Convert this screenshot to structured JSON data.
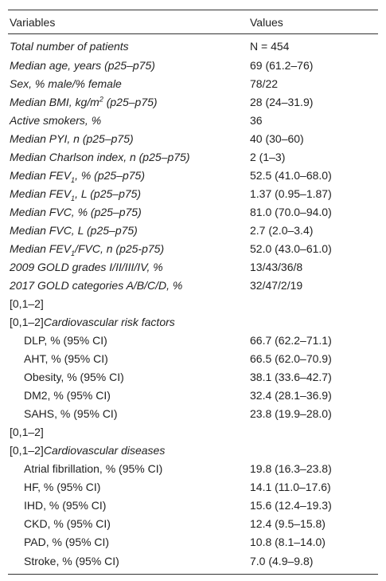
{
  "table": {
    "header": [
      "Variables",
      "Values"
    ],
    "rows": [
      {
        "label": [
          "Total number of patients"
        ],
        "value": "N = 454",
        "italic": true
      },
      {
        "label": [
          "Median age, years (p25–p75)"
        ],
        "value": "69 (61.2–76)",
        "italic": true
      },
      {
        "label": [
          "Sex, % male/% female"
        ],
        "value": "78/22",
        "italic": true
      },
      {
        "label": [
          "Median BMI, kg/m",
          {
            "sup": "2"
          },
          " (p25–p75)"
        ],
        "value": "28 (24–31.9)",
        "italic": true
      },
      {
        "label": [
          "Active smokers, %"
        ],
        "value": "36",
        "italic": true
      },
      {
        "label": [
          "Median PYI, n (p25–p75)"
        ],
        "value": "40 (30–60)",
        "italic": true
      },
      {
        "label": [
          "Median Charlson index, n (p25–p75)"
        ],
        "value": "2 (1–3)",
        "italic": true
      },
      {
        "label": [
          "Median FEV",
          {
            "sub": "1"
          },
          ", % (p25–p75)"
        ],
        "value": "52.5 (41.0–68.0)",
        "italic": true
      },
      {
        "label": [
          "Median FEV",
          {
            "sub": "1"
          },
          ", L (p25–p75)"
        ],
        "value": "1.37 (0.95–1.87)",
        "italic": true
      },
      {
        "label": [
          "Median FVC, % (p25–p75)"
        ],
        "value": "81.0 (70.0–94.0)",
        "italic": true
      },
      {
        "label": [
          "Median FVC, L (p25–p75)"
        ],
        "value": "2.7 (2.0–3.4)",
        "italic": true
      },
      {
        "label": [
          "Median FEV",
          {
            "sub": "1"
          },
          "/FVC, n (p25-p75)"
        ],
        "value": "52.0 (43.0–61.0)",
        "italic": true
      },
      {
        "label": [
          "2009 GOLD grades I/II/III/IV, %"
        ],
        "value": "13/43/36/8",
        "italic": true
      },
      {
        "label": [
          "2017 GOLD categories A/B/C/D, %"
        ],
        "value": "32/47/2/19",
        "italic": true
      },
      {
        "label": [
          "[0,1–2]"
        ]
      },
      {
        "label": [
          "[0,1–2]",
          {
            "i": "Cardiovascular risk factors"
          }
        ]
      },
      {
        "label": [
          "DLP, % (95% CI)"
        ],
        "value": "66.7 (62.2–71.1)",
        "indent": true
      },
      {
        "label": [
          "AHT, % (95% CI)"
        ],
        "value": "66.5 (62.0–70.9)",
        "indent": true
      },
      {
        "label": [
          "Obesity, % (95% CI)"
        ],
        "value": "38.1 (33.6–42.7)",
        "indent": true
      },
      {
        "label": [
          "DM2, % (95% CI)"
        ],
        "value": "32.4 (28.1–36.9)",
        "indent": true
      },
      {
        "label": [
          "SAHS, % (95% CI)"
        ],
        "value": "23.8 (19.9–28.0)",
        "indent": true
      },
      {
        "label": [
          "[0,1–2]"
        ]
      },
      {
        "label": [
          "[0,1–2]",
          {
            "i": "Cardiovascular diseases"
          }
        ]
      },
      {
        "label": [
          "Atrial fibrillation, % (95% CI)"
        ],
        "value": "19.8 (16.3–23.8)",
        "indent": true
      },
      {
        "label": [
          "HF, % (95% CI)"
        ],
        "value": "14.1 (11.0–17.6)",
        "indent": true
      },
      {
        "label": [
          "IHD, % (95% CI)"
        ],
        "value": "15.6 (12.4–19.3)",
        "indent": true
      },
      {
        "label": [
          "CKD, % (95% CI)"
        ],
        "value": "12.4 (9.5–15.8)",
        "indent": true
      },
      {
        "label": [
          "PAD, % (95% CI)"
        ],
        "value": "10.8 (8.1–14.0)",
        "indent": true
      },
      {
        "label": [
          "Stroke, % (95% CI)"
        ],
        "value": "7.0 (4.9–9.8)",
        "indent": true
      }
    ]
  }
}
